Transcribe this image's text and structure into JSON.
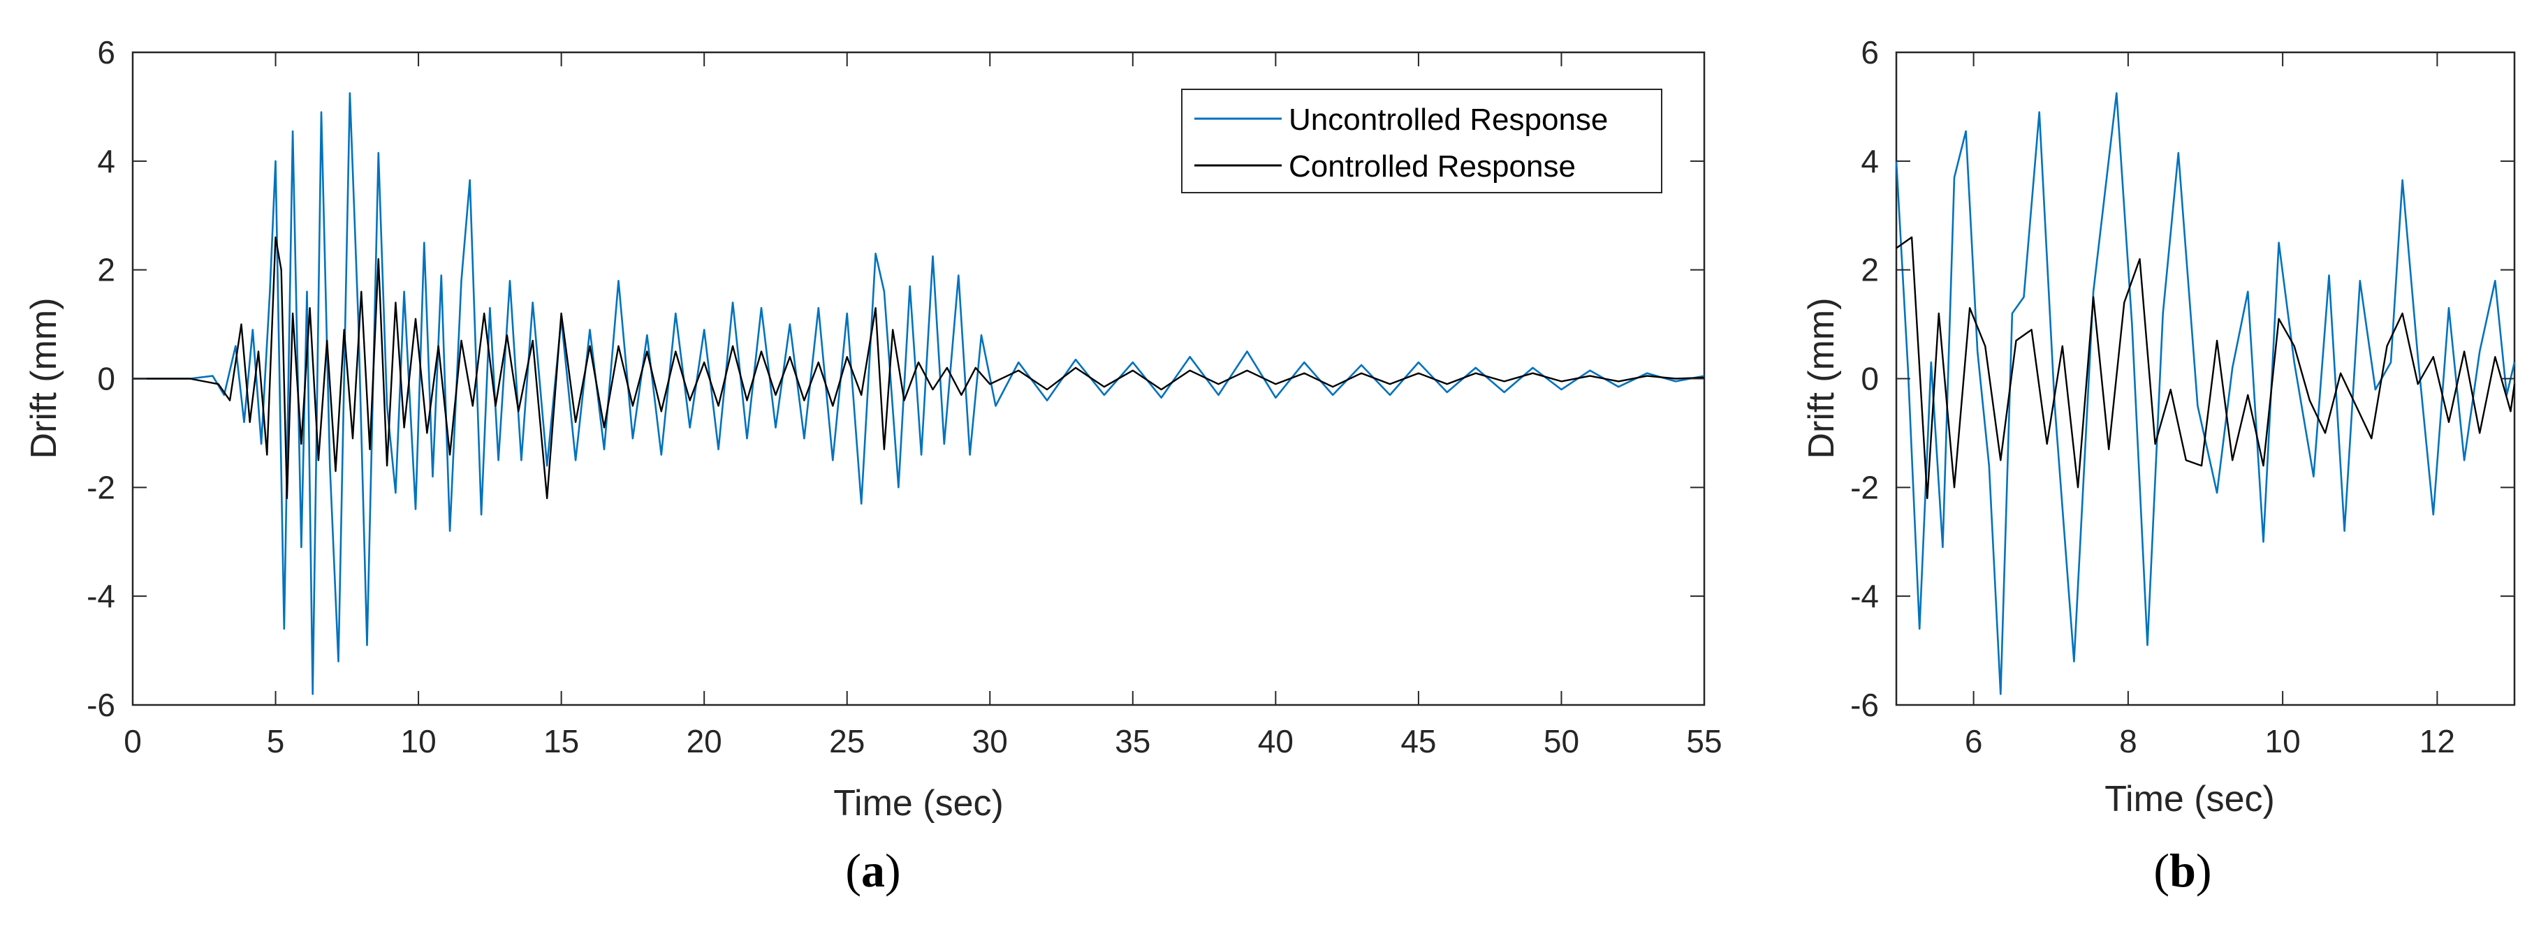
{
  "figure": {
    "caption_a_open": "(",
    "caption_a_letter": "a",
    "caption_a_close": ")",
    "caption_b_open": "(",
    "caption_b_letter": "b",
    "caption_b_close": ")"
  },
  "colors": {
    "uncontrolled": "#0072BD",
    "controlled": "#000000",
    "axis": "#262626"
  },
  "chart_data": [
    {
      "id": "a",
      "type": "line",
      "title": "",
      "xlabel": "Time (sec)",
      "ylabel": "Drift (mm)",
      "xlim": [
        0,
        55
      ],
      "ylim": [
        -6,
        6
      ],
      "xticks": [
        0,
        5,
        10,
        15,
        20,
        25,
        30,
        35,
        40,
        45,
        50,
        55
      ],
      "yticks": [
        -6,
        -4,
        -2,
        0,
        2,
        4,
        6
      ],
      "legend": {
        "placement": "top-right",
        "entries": [
          "Uncontrolled Response",
          "Controlled Response"
        ]
      },
      "series": [
        {
          "name": "Uncontrolled Response",
          "color": "#0072BD",
          "x": [
            0,
            2,
            2.8,
            3.2,
            3.6,
            3.9,
            4.2,
            4.5,
            4.8,
            5.0,
            5.3,
            5.6,
            5.9,
            6.1,
            6.3,
            6.6,
            6.9,
            7.2,
            7.6,
            7.9,
            8.2,
            8.6,
            8.9,
            9.2,
            9.5,
            9.9,
            10.2,
            10.5,
            10.8,
            11.1,
            11.5,
            11.8,
            12.2,
            12.5,
            12.8,
            13.2,
            13.6,
            14,
            14.5,
            15,
            15.5,
            16,
            16.5,
            17,
            17.5,
            18,
            18.5,
            19,
            19.5,
            20,
            20.5,
            21,
            21.5,
            22,
            22.5,
            23,
            23.5,
            24,
            24.5,
            25,
            25.5,
            26,
            26.3,
            26.8,
            27.2,
            27.6,
            28,
            28.4,
            28.9,
            29.3,
            29.7,
            30.2,
            31,
            32,
            33,
            34,
            35,
            36,
            37,
            38,
            39,
            40,
            41,
            42,
            43,
            44,
            45,
            46,
            47,
            48,
            49,
            50,
            51,
            52,
            53,
            54,
            55
          ],
          "y": [
            0,
            0,
            0.05,
            -0.3,
            0.6,
            -0.8,
            0.9,
            -1.2,
            1.6,
            4.0,
            -4.6,
            4.55,
            -3.1,
            1.6,
            -5.8,
            4.9,
            -1.6,
            -5.2,
            5.25,
            1.0,
            -4.9,
            4.15,
            -0.5,
            -2.1,
            1.6,
            -2.4,
            2.5,
            -1.8,
            1.9,
            -2.8,
            1.8,
            3.65,
            -2.5,
            1.3,
            -1.5,
            1.8,
            -1.5,
            1.4,
            -1.6,
            1.1,
            -1.5,
            0.9,
            -1.3,
            1.8,
            -1.1,
            0.8,
            -1.4,
            1.2,
            -0.9,
            0.9,
            -1.3,
            1.4,
            -1.1,
            1.3,
            -0.9,
            1.0,
            -1.1,
            1.3,
            -1.5,
            1.2,
            -2.3,
            2.3,
            1.6,
            -2.0,
            1.7,
            -1.4,
            2.25,
            -1.2,
            1.9,
            -1.4,
            0.8,
            -0.5,
            0.3,
            -0.4,
            0.35,
            -0.3,
            0.3,
            -0.35,
            0.4,
            -0.3,
            0.5,
            -0.35,
            0.3,
            -0.3,
            0.25,
            -0.3,
            0.3,
            -0.25,
            0.2,
            -0.25,
            0.2,
            -0.2,
            0.15,
            -0.15,
            0.1,
            -0.05,
            0.05
          ]
        },
        {
          "name": "Controlled Response",
          "color": "#000000",
          "x": [
            0,
            2,
            3,
            3.4,
            3.8,
            4.1,
            4.4,
            4.7,
            5.0,
            5.2,
            5.4,
            5.6,
            5.9,
            6.2,
            6.5,
            6.8,
            7.1,
            7.4,
            7.7,
            8.0,
            8.3,
            8.6,
            8.9,
            9.2,
            9.5,
            9.9,
            10.3,
            10.7,
            11.1,
            11.5,
            11.9,
            12.3,
            12.7,
            13.1,
            13.5,
            14.0,
            14.5,
            15,
            15.5,
            16,
            16.5,
            17,
            17.5,
            18,
            18.5,
            19,
            19.5,
            20,
            20.5,
            21,
            21.5,
            22,
            22.5,
            23,
            23.5,
            24,
            24.5,
            25,
            25.5,
            26,
            26.3,
            26.6,
            27,
            27.5,
            28,
            28.5,
            29,
            29.5,
            30,
            31,
            32,
            33,
            34,
            35,
            36,
            37,
            38,
            39,
            40,
            41,
            42,
            43,
            44,
            45,
            46,
            47,
            48,
            49,
            50,
            51,
            52,
            53,
            54,
            55
          ],
          "y": [
            0,
            0,
            -0.1,
            -0.4,
            1.0,
            -0.8,
            0.5,
            -1.4,
            2.6,
            2.0,
            -2.2,
            1.2,
            -1.2,
            1.3,
            -1.5,
            0.7,
            -1.7,
            0.9,
            -1.1,
            1.6,
            -1.3,
            2.2,
            -1.6,
            1.4,
            -0.9,
            1.1,
            -1.0,
            0.6,
            -1.4,
            0.7,
            -0.5,
            1.2,
            -0.5,
            0.8,
            -0.6,
            0.7,
            -2.2,
            1.2,
            -0.8,
            0.6,
            -0.9,
            0.6,
            -0.5,
            0.5,
            -0.6,
            0.5,
            -0.4,
            0.3,
            -0.5,
            0.6,
            -0.4,
            0.5,
            -0.3,
            0.4,
            -0.4,
            0.3,
            -0.5,
            0.4,
            -0.3,
            1.3,
            -1.3,
            0.9,
            -0.4,
            0.3,
            -0.2,
            0.2,
            -0.3,
            0.2,
            -0.1,
            0.15,
            -0.2,
            0.2,
            -0.15,
            0.15,
            -0.2,
            0.15,
            -0.1,
            0.15,
            -0.1,
            0.1,
            -0.15,
            0.1,
            -0.1,
            0.1,
            -0.1,
            0.1,
            -0.05,
            0.1,
            -0.05,
            0.05,
            -0.05,
            0.05,
            0,
            0.02
          ]
        }
      ]
    },
    {
      "id": "b",
      "type": "line",
      "title": "",
      "xlabel": "Time (sec)",
      "ylabel": "Drift (mm)",
      "xlim": [
        5,
        13
      ],
      "ylim": [
        -6,
        6
      ],
      "xticks": [
        6,
        8,
        10,
        12
      ],
      "yticks": [
        -6,
        -4,
        -2,
        0,
        2,
        4,
        6
      ],
      "series": [
        {
          "name": "Uncontrolled Response",
          "color": "#0072BD",
          "x": [
            5.0,
            5.15,
            5.3,
            5.45,
            5.6,
            5.75,
            5.9,
            6.05,
            6.2,
            6.35,
            6.5,
            6.65,
            6.85,
            7.05,
            7.3,
            7.55,
            7.85,
            8.05,
            8.25,
            8.45,
            8.65,
            8.9,
            9.15,
            9.35,
            9.55,
            9.75,
            9.95,
            10.15,
            10.4,
            10.6,
            10.8,
            11.0,
            11.2,
            11.4,
            11.55,
            11.75,
            11.95,
            12.15,
            12.35,
            12.55,
            12.75,
            12.9,
            13.0
          ],
          "y": [
            4.0,
            0.2,
            -4.6,
            0.3,
            -3.1,
            3.7,
            4.55,
            0.5,
            -1.6,
            -5.8,
            1.2,
            1.5,
            4.9,
            -0.5,
            -5.2,
            1.6,
            5.25,
            1.0,
            -4.9,
            1.2,
            4.15,
            -0.5,
            -2.1,
            0.2,
            1.6,
            -3.0,
            2.5,
            0.3,
            -1.8,
            1.9,
            -2.8,
            1.8,
            -0.2,
            0.3,
            3.65,
            0.4,
            -2.5,
            1.3,
            -1.5,
            0.5,
            1.8,
            -0.3,
            0.3
          ]
        },
        {
          "name": "Controlled Response",
          "color": "#000000",
          "x": [
            5.0,
            5.2,
            5.4,
            5.55,
            5.75,
            5.95,
            6.15,
            6.35,
            6.55,
            6.75,
            6.95,
            7.15,
            7.35,
            7.55,
            7.75,
            7.95,
            8.15,
            8.35,
            8.55,
            8.75,
            8.95,
            9.15,
            9.35,
            9.55,
            9.75,
            9.95,
            10.15,
            10.35,
            10.55,
            10.75,
            10.95,
            11.15,
            11.35,
            11.55,
            11.75,
            11.95,
            12.15,
            12.35,
            12.55,
            12.75,
            12.95,
            13.0
          ],
          "y": [
            2.4,
            2.6,
            -2.2,
            1.2,
            -2.0,
            1.3,
            0.6,
            -1.5,
            0.7,
            0.9,
            -1.2,
            0.6,
            -2.0,
            1.5,
            -1.3,
            1.4,
            2.2,
            -1.2,
            -0.2,
            -1.5,
            -1.6,
            0.7,
            -1.5,
            -0.3,
            -1.6,
            1.1,
            0.6,
            -0.4,
            -1.0,
            0.1,
            -0.5,
            -1.1,
            0.6,
            1.2,
            -0.1,
            0.4,
            -0.8,
            0.5,
            -1.0,
            0.4,
            -0.6,
            -0.1
          ]
        }
      ]
    }
  ]
}
